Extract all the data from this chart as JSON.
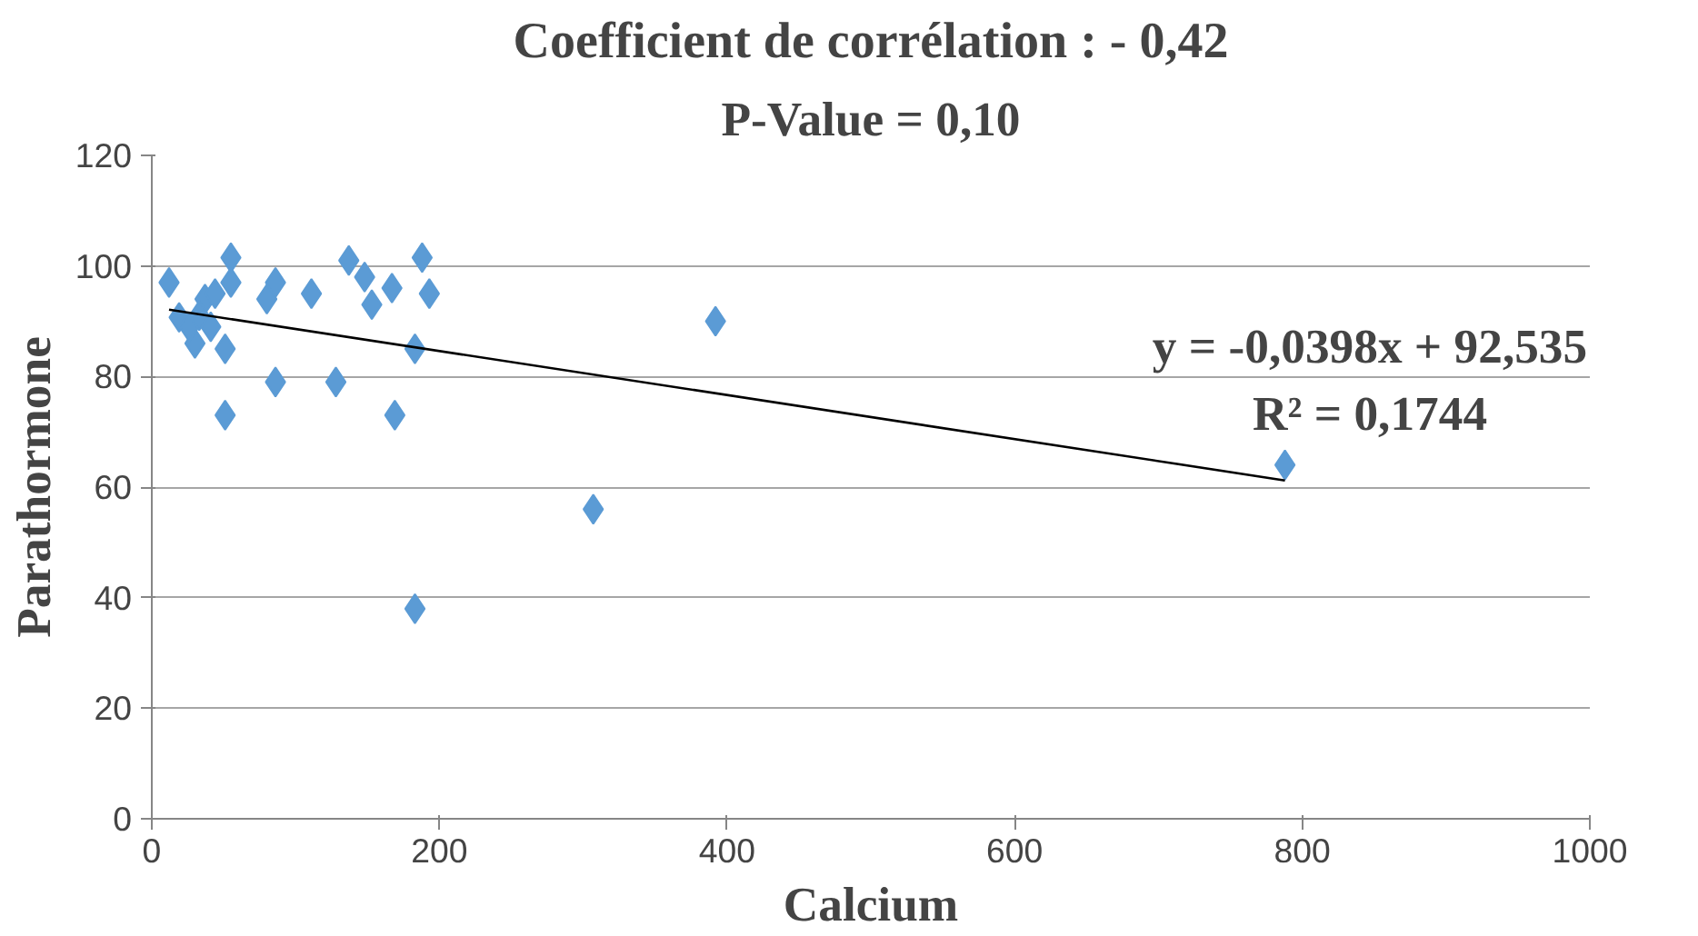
{
  "chart_data": {
    "type": "scatter",
    "title": "Coefficient de corrélation : - 0,42",
    "subtitle": "P-Value = 0,10",
    "xlabel": "Calcium",
    "ylabel": "Parathormone",
    "xlim": [
      0,
      1000
    ],
    "xticks": [
      0,
      200,
      400,
      600,
      800,
      1000
    ],
    "ylim": [
      0,
      120
    ],
    "yticks": [
      0,
      20,
      40,
      60,
      80,
      100,
      120
    ],
    "grid": "y",
    "marker": "diamond",
    "annotations": [
      "y = -0,0398x + 92,535",
      "R² = 0,1744"
    ],
    "series": [
      {
        "color": "#5b9bd5",
        "x": [
          12,
          19,
          30,
          37,
          44,
          51,
          55,
          55,
          51,
          41,
          26,
          33,
          80,
          86,
          86,
          111,
          128,
          137,
          148,
          153,
          167,
          169,
          183,
          188,
          193,
          183,
          307,
          392,
          788
        ],
        "values": [
          97,
          90.7,
          86,
          94,
          95,
          85,
          101.5,
          97,
          73,
          89,
          89,
          91,
          94,
          97,
          79,
          95,
          79,
          101,
          98,
          93,
          96,
          73,
          85,
          101.5,
          95,
          38,
          56,
          90,
          64
        ]
      },
      {
        "type": "line",
        "color": "#000000",
        "x": [
          12,
          788
        ],
        "values": [
          92.1,
          61.2
        ],
        "marker": "none"
      }
    ]
  }
}
